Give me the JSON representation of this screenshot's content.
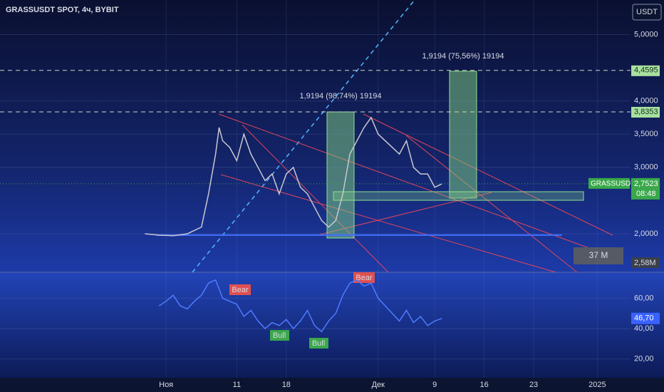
{
  "header": {
    "symbol": "GRASSUSDT SPOT, 4ч, BYBIT",
    "currency": "USDT",
    "volume_label": "2,58M",
    "volume_box": "37 M"
  },
  "chart_data": [
    {
      "type": "line",
      "color": "#c8c8d0",
      "x": [
        -3,
        -1,
        1,
        3,
        5,
        6,
        7,
        7.5,
        8,
        9,
        10,
        11,
        12,
        13,
        14,
        15,
        16,
        17,
        18,
        19,
        20,
        21,
        22,
        23,
        24,
        25,
        26,
        27,
        28,
        29,
        30,
        31,
        32,
        33,
        34,
        35,
        36,
        37,
        38,
        39
      ],
      "values": [
        2.0,
        1.98,
        1.97,
        2.0,
        2.1,
        2.6,
        3.2,
        3.6,
        3.4,
        3.3,
        3.1,
        3.5,
        3.2,
        3.0,
        2.8,
        2.9,
        2.6,
        2.9,
        3.0,
        2.7,
        2.6,
        2.4,
        2.2,
        2.1,
        2.2,
        2.6,
        3.2,
        3.4,
        3.6,
        3.75,
        3.5,
        3.4,
        3.3,
        3.2,
        3.4,
        3.0,
        2.9,
        2.9,
        2.7,
        2.75
      ],
      "xlim": [
        -23.5,
        65.7
      ],
      "ylim": [
        1.42,
        5.52
      ],
      "yticks": [
        {
          "value": 5,
          "label": "5,0000"
        },
        {
          "value": 4,
          "label": "4,0000"
        },
        {
          "value": 3.5,
          "label": "3,5000"
        },
        {
          "value": 3,
          "label": "3,0000"
        },
        {
          "value": 2,
          "label": "2,0000"
        }
      ],
      "xticks": [
        {
          "value": 0,
          "label": "Ноя"
        },
        {
          "value": 10,
          "label": "11"
        },
        {
          "value": 17,
          "label": "18"
        },
        {
          "value": 30,
          "label": "Дек"
        },
        {
          "value": 38,
          "label": "9"
        },
        {
          "value": 45,
          "label": "16"
        },
        {
          "value": 52,
          "label": "23"
        },
        {
          "value": 61,
          "label": "2025"
        }
      ],
      "levels": [
        {
          "value": 4.4595,
          "label": "4,4595"
        },
        {
          "value": 3.8353,
          "label": "3,8353"
        }
      ],
      "support": 1.98,
      "last": {
        "value": 2.7523,
        "label": "2,7523",
        "name": "GRASSUSDT",
        "time": "08:48"
      },
      "annotations": [
        "1,9194 (98,74%) 19194",
        "1,9194 (75,56%) 19194"
      ]
    },
    {
      "type": "line",
      "color": "#4f7bff",
      "x": [
        -1,
        0,
        1,
        2,
        3,
        4,
        5,
        6,
        7,
        8,
        9,
        10,
        11,
        12,
        13,
        14,
        15,
        16,
        17,
        18,
        19,
        20,
        21,
        22,
        23,
        24,
        25,
        26,
        27,
        28,
        29,
        30,
        31,
        32,
        33,
        34,
        35,
        36,
        37,
        38,
        39
      ],
      "values": [
        55,
        58,
        62,
        55,
        53,
        58,
        62,
        70,
        72,
        60,
        58,
        56,
        48,
        52,
        45,
        40,
        44,
        42,
        46,
        40,
        45,
        52,
        42,
        38,
        45,
        50,
        62,
        70,
        72,
        68,
        70,
        60,
        55,
        50,
        45,
        52,
        44,
        48,
        42,
        45,
        46.7
      ],
      "ylim": [
        6.7,
        77.1
      ],
      "yticks": [
        {
          "value": 60,
          "label": "60,00"
        },
        {
          "value": 40,
          "label": "40,00"
        },
        {
          "value": 20,
          "label": "20,00"
        }
      ],
      "last": {
        "value": 46.7,
        "label": "46,70"
      },
      "signals": [
        "Bear",
        "Bear",
        "Bull",
        "Bull"
      ]
    }
  ]
}
